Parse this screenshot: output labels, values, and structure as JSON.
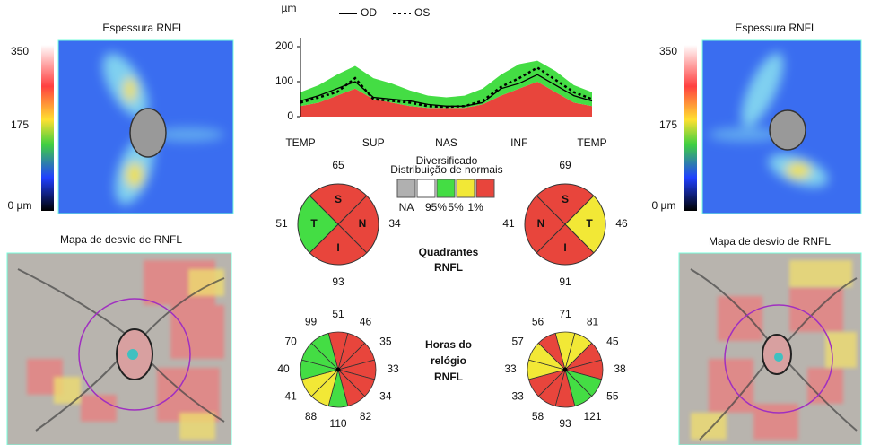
{
  "left_panel": {
    "thickness_title": "Espessura RNFL",
    "scale_labels": [
      "350",
      "175",
      "0 µm"
    ],
    "deviation_title": "Mapa de desvio de RNFL"
  },
  "right_panel": {
    "thickness_title": "Espessura RNFL",
    "scale_labels": [
      "350",
      "175",
      "0 µm"
    ],
    "deviation_title": "Mapa de desvio de RNFL"
  },
  "chart_data": {
    "type": "line",
    "y_unit": "µm",
    "categories": [
      "TEMP",
      null,
      null,
      null,
      "SUP",
      null,
      null,
      null,
      "NAS",
      null,
      null,
      null,
      "INF",
      null,
      null,
      null,
      "TEMP"
    ],
    "ylim": [
      0,
      200
    ],
    "yticks": [
      0,
      100,
      200
    ],
    "normal_bands": [
      {
        "color": "#e8453c",
        "values": [
          30,
          40,
          60,
          80,
          50,
          40,
          30,
          25,
          25,
          25,
          35,
          60,
          80,
          100,
          70,
          40,
          30
        ]
      },
      {
        "color": "#44dd44",
        "values": [
          40,
          50,
          60,
          65,
          60,
          55,
          45,
          35,
          30,
          35,
          45,
          60,
          70,
          60,
          60,
          50,
          40
        ]
      }
    ],
    "series": [
      {
        "name": "OD",
        "color": "#000000",
        "dash": "solid",
        "values": [
          45,
          60,
          80,
          100,
          55,
          50,
          45,
          35,
          30,
          30,
          40,
          80,
          95,
          120,
          90,
          60,
          45
        ]
      },
      {
        "name": "OS",
        "color": "#000000",
        "dash": "dotted",
        "values": [
          40,
          55,
          70,
          110,
          50,
          45,
          40,
          30,
          28,
          30,
          45,
          85,
          110,
          140,
          105,
          70,
          50
        ]
      }
    ]
  },
  "legend": {
    "title": "Diversificado",
    "subtitle": "Distribuição de normais",
    "boxes": [
      {
        "color": "#b0b0b0"
      },
      {
        "color": "#ffffff"
      },
      {
        "color": "#44dd44"
      },
      {
        "color": "#f2e836"
      },
      {
        "color": "#e8453c"
      }
    ],
    "labels": [
      "NA",
      "95%",
      "5%",
      "1%"
    ]
  },
  "quadrants": {
    "title": [
      "Quadrantes",
      "RNFL"
    ],
    "od": [
      {
        "label": "S",
        "value": 65,
        "color": "#e8453c"
      },
      {
        "label": "N",
        "value": 34,
        "color": "#e8453c"
      },
      {
        "label": "I",
        "value": 93,
        "color": "#e8453c"
      },
      {
        "label": "T",
        "value": 51,
        "color": "#44dd44"
      }
    ],
    "os": [
      {
        "label": "S",
        "value": 69,
        "color": "#e8453c"
      },
      {
        "label": "T",
        "value": 46,
        "color": "#f2e836"
      },
      {
        "label": "I",
        "value": 91,
        "color": "#e8453c"
      },
      {
        "label": "N",
        "value": 41,
        "color": "#e8453c"
      }
    ]
  },
  "clock_hours": {
    "title": [
      "Horas do",
      "relógio",
      "RNFL"
    ],
    "od": {
      "values": [
        51,
        46,
        35,
        33,
        34,
        82,
        110,
        88,
        41,
        40,
        70,
        99
      ],
      "colors": [
        "#e8453c",
        "#e8453c",
        "#e8453c",
        "#e8453c",
        "#e8453c",
        "#e8453c",
        "#44dd44",
        "#f2e836",
        "#f2e836",
        "#44dd44",
        "#44dd44",
        "#44dd44"
      ]
    },
    "os": {
      "values": [
        71,
        81,
        45,
        38,
        55,
        121,
        93,
        58,
        33,
        33,
        57,
        56
      ],
      "colors": [
        "#f2e836",
        "#f2e836",
        "#e8453c",
        "#e8453c",
        "#44dd44",
        "#44dd44",
        "#e8453c",
        "#e8453c",
        "#e8453c",
        "#f2e836",
        "#f2e836",
        "#e8453c"
      ]
    }
  }
}
